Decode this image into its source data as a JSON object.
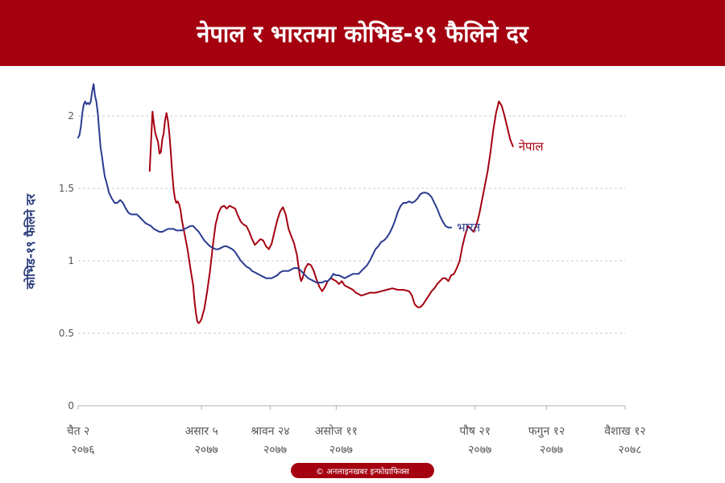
{
  "title": "नेपाल र भारतमा कोभिड-१९ फैलिने दर",
  "credit": "© अनलाइनखबर इन्फोग्राफिक्स",
  "chart_data": {
    "type": "line",
    "ylabel": "कोभिड-१९ फैलिने दर",
    "xlabel": "",
    "ylim": [
      0,
      2.2
    ],
    "xlim": [
      0,
      390
    ],
    "grid": true,
    "yticks": [
      {
        "value": 0,
        "label": "0"
      },
      {
        "value": 0.5,
        "label": "0.5"
      },
      {
        "value": 1,
        "label": "1"
      },
      {
        "value": 1.5,
        "label": "1.5"
      },
      {
        "value": 2,
        "label": "2"
      }
    ],
    "xticks": [
      {
        "x": 0,
        "line1": "चैत २",
        "line2": "२०७६"
      },
      {
        "x": 88,
        "line1": "असार ५",
        "line2": "२०७७"
      },
      {
        "x": 137,
        "line1": "श्रावन २४",
        "line2": "२०७७"
      },
      {
        "x": 184,
        "line1": "असोज ११",
        "line2": "२०७७"
      },
      {
        "x": 283,
        "line1": "पौष २१",
        "line2": "२०७७"
      },
      {
        "x": 334,
        "line1": "फगुन १२",
        "line2": "२०७७"
      },
      {
        "x": 390,
        "line1": "वैशाख १२",
        "line2": "२०७८"
      }
    ],
    "series": [
      {
        "name": "नेपाल",
        "color": "#a50010",
        "points": [
          [
            51,
            1.62
          ],
          [
            52,
            1.82
          ],
          [
            53,
            2.03
          ],
          [
            54,
            1.95
          ],
          [
            55,
            1.88
          ],
          [
            57,
            1.82
          ],
          [
            58,
            1.74
          ],
          [
            59,
            1.75
          ],
          [
            60,
            1.84
          ],
          [
            61,
            1.88
          ],
          [
            62,
            1.97
          ],
          [
            63,
            2.02
          ],
          [
            64,
            1.97
          ],
          [
            65,
            1.88
          ],
          [
            66,
            1.76
          ],
          [
            67,
            1.62
          ],
          [
            68,
            1.5
          ],
          [
            69,
            1.43
          ],
          [
            70,
            1.4
          ],
          [
            71,
            1.41
          ],
          [
            72,
            1.39
          ],
          [
            73,
            1.35
          ],
          [
            74,
            1.28
          ],
          [
            76,
            1.18
          ],
          [
            78,
            1.08
          ],
          [
            80,
            0.95
          ],
          [
            82,
            0.83
          ],
          [
            83,
            0.72
          ],
          [
            84,
            0.64
          ],
          [
            85,
            0.58
          ],
          [
            86,
            0.57
          ],
          [
            87,
            0.58
          ],
          [
            88,
            0.6
          ],
          [
            90,
            0.67
          ],
          [
            92,
            0.79
          ],
          [
            94,
            0.93
          ],
          [
            96,
            1.1
          ],
          [
            98,
            1.25
          ],
          [
            100,
            1.33
          ],
          [
            102,
            1.37
          ],
          [
            104,
            1.38
          ],
          [
            106,
            1.36
          ],
          [
            108,
            1.38
          ],
          [
            110,
            1.37
          ],
          [
            112,
            1.36
          ],
          [
            114,
            1.31
          ],
          [
            116,
            1.27
          ],
          [
            118,
            1.25
          ],
          [
            120,
            1.24
          ],
          [
            122,
            1.2
          ],
          [
            124,
            1.15
          ],
          [
            126,
            1.11
          ],
          [
            128,
            1.13
          ],
          [
            130,
            1.15
          ],
          [
            132,
            1.14
          ],
          [
            134,
            1.1
          ],
          [
            136,
            1.08
          ],
          [
            138,
            1.12
          ],
          [
            140,
            1.2
          ],
          [
            142,
            1.28
          ],
          [
            144,
            1.34
          ],
          [
            146,
            1.37
          ],
          [
            148,
            1.32
          ],
          [
            150,
            1.22
          ],
          [
            152,
            1.17
          ],
          [
            154,
            1.12
          ],
          [
            156,
            1.04
          ],
          [
            158,
            0.9
          ],
          [
            159,
            0.86
          ],
          [
            160,
            0.88
          ],
          [
            162,
            0.95
          ],
          [
            164,
            0.98
          ],
          [
            166,
            0.97
          ],
          [
            168,
            0.93
          ],
          [
            170,
            0.87
          ],
          [
            172,
            0.82
          ],
          [
            174,
            0.79
          ],
          [
            176,
            0.82
          ],
          [
            178,
            0.86
          ],
          [
            180,
            0.88
          ],
          [
            182,
            0.87
          ],
          [
            184,
            0.86
          ],
          [
            186,
            0.84
          ],
          [
            188,
            0.86
          ],
          [
            190,
            0.83
          ],
          [
            192,
            0.82
          ],
          [
            194,
            0.81
          ],
          [
            196,
            0.8
          ],
          [
            198,
            0.78
          ],
          [
            200,
            0.77
          ],
          [
            202,
            0.76
          ],
          [
            205,
            0.77
          ],
          [
            208,
            0.78
          ],
          [
            212,
            0.78
          ],
          [
            216,
            0.79
          ],
          [
            220,
            0.8
          ],
          [
            224,
            0.81
          ],
          [
            228,
            0.8
          ],
          [
            232,
            0.8
          ],
          [
            236,
            0.79
          ],
          [
            238,
            0.76
          ],
          [
            240,
            0.7
          ],
          [
            242,
            0.68
          ],
          [
            244,
            0.68
          ],
          [
            246,
            0.7
          ],
          [
            248,
            0.73
          ],
          [
            250,
            0.76
          ],
          [
            252,
            0.79
          ],
          [
            254,
            0.81
          ],
          [
            256,
            0.84
          ],
          [
            258,
            0.86
          ],
          [
            260,
            0.88
          ],
          [
            262,
            0.88
          ],
          [
            264,
            0.86
          ],
          [
            266,
            0.9
          ],
          [
            268,
            0.91
          ],
          [
            270,
            0.95
          ],
          [
            272,
            1.0
          ],
          [
            274,
            1.1
          ],
          [
            276,
            1.18
          ],
          [
            278,
            1.24
          ],
          [
            280,
            1.22
          ],
          [
            282,
            1.2
          ],
          [
            284,
            1.25
          ],
          [
            286,
            1.32
          ],
          [
            288,
            1.42
          ],
          [
            290,
            1.52
          ],
          [
            292,
            1.62
          ],
          [
            294,
            1.75
          ],
          [
            296,
            1.9
          ],
          [
            298,
            2.02
          ],
          [
            300,
            2.1
          ],
          [
            302,
            2.07
          ],
          [
            304,
            2.0
          ],
          [
            306,
            1.92
          ],
          [
            308,
            1.84
          ],
          [
            310,
            1.79
          ]
        ]
      },
      {
        "name": "भारत",
        "color": "#2a3b8f",
        "points": [
          [
            0,
            1.85
          ],
          [
            1,
            1.87
          ],
          [
            2,
            1.93
          ],
          [
            3,
            2.02
          ],
          [
            4,
            2.08
          ],
          [
            5,
            2.1
          ],
          [
            6,
            2.08
          ],
          [
            7,
            2.09
          ],
          [
            8,
            2.08
          ],
          [
            9,
            2.1
          ],
          [
            10,
            2.17
          ],
          [
            11,
            2.22
          ],
          [
            12,
            2.14
          ],
          [
            13,
            2.1
          ],
          [
            14,
            2.02
          ],
          [
            15,
            1.9
          ],
          [
            16,
            1.78
          ],
          [
            17,
            1.72
          ],
          [
            18,
            1.65
          ],
          [
            19,
            1.58
          ],
          [
            20,
            1.55
          ],
          [
            22,
            1.47
          ],
          [
            24,
            1.43
          ],
          [
            26,
            1.4
          ],
          [
            28,
            1.4
          ],
          [
            30,
            1.42
          ],
          [
            32,
            1.4
          ],
          [
            34,
            1.36
          ],
          [
            36,
            1.33
          ],
          [
            38,
            1.32
          ],
          [
            40,
            1.32
          ],
          [
            42,
            1.32
          ],
          [
            44,
            1.3
          ],
          [
            46,
            1.28
          ],
          [
            48,
            1.26
          ],
          [
            50,
            1.25
          ],
          [
            52,
            1.24
          ],
          [
            54,
            1.22
          ],
          [
            56,
            1.21
          ],
          [
            58,
            1.2
          ],
          [
            60,
            1.2
          ],
          [
            62,
            1.21
          ],
          [
            64,
            1.22
          ],
          [
            66,
            1.22
          ],
          [
            68,
            1.22
          ],
          [
            70,
            1.21
          ],
          [
            72,
            1.21
          ],
          [
            74,
            1.21
          ],
          [
            76,
            1.22
          ],
          [
            78,
            1.23
          ],
          [
            80,
            1.24
          ],
          [
            82,
            1.24
          ],
          [
            84,
            1.22
          ],
          [
            86,
            1.2
          ],
          [
            88,
            1.17
          ],
          [
            90,
            1.14
          ],
          [
            92,
            1.12
          ],
          [
            94,
            1.1
          ],
          [
            96,
            1.09
          ],
          [
            98,
            1.08
          ],
          [
            100,
            1.08
          ],
          [
            102,
            1.09
          ],
          [
            104,
            1.1
          ],
          [
            106,
            1.1
          ],
          [
            108,
            1.09
          ],
          [
            110,
            1.08
          ],
          [
            112,
            1.06
          ],
          [
            114,
            1.03
          ],
          [
            116,
            1.0
          ],
          [
            118,
            0.98
          ],
          [
            120,
            0.96
          ],
          [
            122,
            0.95
          ],
          [
            124,
            0.93
          ],
          [
            126,
            0.92
          ],
          [
            128,
            0.91
          ],
          [
            130,
            0.9
          ],
          [
            132,
            0.89
          ],
          [
            134,
            0.88
          ],
          [
            136,
            0.88
          ],
          [
            138,
            0.88
          ],
          [
            140,
            0.89
          ],
          [
            142,
            0.9
          ],
          [
            144,
            0.92
          ],
          [
            146,
            0.93
          ],
          [
            148,
            0.93
          ],
          [
            150,
            0.93
          ],
          [
            152,
            0.94
          ],
          [
            154,
            0.95
          ],
          [
            156,
            0.95
          ],
          [
            158,
            0.94
          ],
          [
            160,
            0.92
          ],
          [
            162,
            0.9
          ],
          [
            164,
            0.88
          ],
          [
            166,
            0.87
          ],
          [
            168,
            0.86
          ],
          [
            170,
            0.85
          ],
          [
            172,
            0.85
          ],
          [
            174,
            0.85
          ],
          [
            176,
            0.86
          ],
          [
            178,
            0.86
          ],
          [
            180,
            0.88
          ],
          [
            182,
            0.91
          ],
          [
            184,
            0.9
          ],
          [
            186,
            0.9
          ],
          [
            188,
            0.89
          ],
          [
            190,
            0.88
          ],
          [
            192,
            0.89
          ],
          [
            194,
            0.9
          ],
          [
            196,
            0.91
          ],
          [
            198,
            0.91
          ],
          [
            200,
            0.91
          ],
          [
            202,
            0.93
          ],
          [
            204,
            0.95
          ],
          [
            206,
            0.97
          ],
          [
            208,
            1.0
          ],
          [
            210,
            1.04
          ],
          [
            212,
            1.08
          ],
          [
            214,
            1.1
          ],
          [
            216,
            1.13
          ],
          [
            218,
            1.14
          ],
          [
            220,
            1.16
          ],
          [
            222,
            1.19
          ],
          [
            224,
            1.23
          ],
          [
            226,
            1.28
          ],
          [
            228,
            1.34
          ],
          [
            230,
            1.38
          ],
          [
            232,
            1.4
          ],
          [
            234,
            1.4
          ],
          [
            236,
            1.41
          ],
          [
            238,
            1.4
          ],
          [
            240,
            1.41
          ],
          [
            242,
            1.43
          ],
          [
            244,
            1.46
          ],
          [
            246,
            1.47
          ],
          [
            248,
            1.47
          ],
          [
            250,
            1.46
          ],
          [
            252,
            1.44
          ],
          [
            254,
            1.4
          ],
          [
            256,
            1.36
          ],
          [
            258,
            1.31
          ],
          [
            260,
            1.27
          ],
          [
            262,
            1.24
          ],
          [
            264,
            1.23
          ],
          [
            266,
            1.23
          ]
        ]
      }
    ]
  }
}
